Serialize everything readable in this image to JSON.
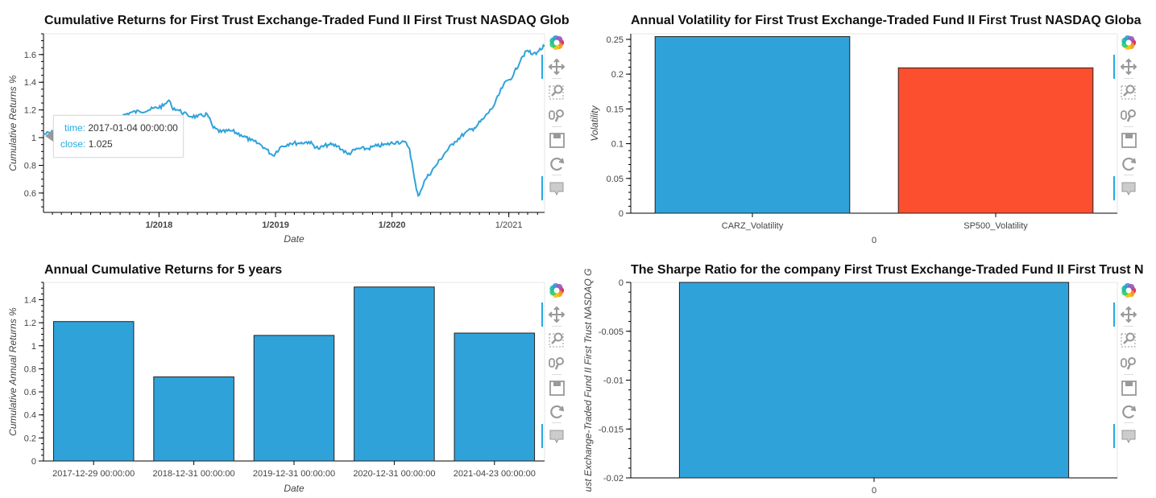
{
  "colors": {
    "blue": "#30a2da",
    "red": "#fc4f30",
    "accent": "#26aae1"
  },
  "toolbar_tools": [
    "bokeh-logo-icon",
    "pan-icon",
    "box-zoom-icon",
    "wheel-zoom-icon",
    "save-icon",
    "reset-icon",
    "hover-icon"
  ],
  "charts": {
    "cum": {
      "title": "Cumulative Returns for First Trust Exchange-Traded Fund II First Trust NASDAQ Glob",
      "xlabel": "Date",
      "ylabel": "Cumulative Returns %",
      "yticks": [
        "0.6",
        "0.8",
        "1",
        "1.2",
        "1.4",
        "1.6"
      ],
      "xticks": [
        "1/2018",
        "1/2019",
        "1/2020",
        "1/2021"
      ],
      "tooltip": {
        "time_label": "time:",
        "time_value": "2017-01-04 00:00:00",
        "close_label": "close:",
        "close_value": "1.025"
      }
    },
    "vol": {
      "title": "Annual Volatility for First Trust Exchange-Traded Fund II First Trust NASDAQ Globa",
      "xlabel": "0",
      "ylabel": "Volatility",
      "yticks": [
        "0",
        "0.05",
        "0.1",
        "0.15",
        "0.2",
        "0.25"
      ]
    },
    "ann": {
      "title": "Annual Cumulative Returns for 5 years",
      "xlabel": "Date",
      "ylabel": "Cumulative Annual Returns %",
      "yticks": [
        "0",
        "0.2",
        "0.4",
        "0.6",
        "0.8",
        "1",
        "1.2",
        "1.4"
      ]
    },
    "sharpe": {
      "title": "The Sharpe Ratio for the company First Trust Exchange-Traded Fund II First Trust N",
      "xlabel": "",
      "ylabel": "ust Exchange-Traded Fund II First Trust NASDAQ G",
      "yticks": [
        "0",
        "-0.005",
        "-0.01",
        "-0.015",
        "-0.02"
      ]
    }
  },
  "chart_data": [
    {
      "type": "line",
      "title": "Cumulative Returns for First Trust Exchange-Traded Fund II First Trust NASDAQ Glob",
      "xlabel": "Date",
      "ylabel": "Cumulative Returns %",
      "xlim": [
        "2017-01-04",
        "2021-04-23"
      ],
      "ylim": [
        0.46,
        1.75
      ],
      "grid": false,
      "series": [
        {
          "x": [
            "2017-01-04",
            "2017-03-01",
            "2017-05-01",
            "2017-07-01",
            "2017-09-01",
            "2017-10-01",
            "2017-11-01",
            "2017-12-01",
            "2018-01-15",
            "2018-02-01",
            "2018-02-10",
            "2018-03-01",
            "2018-04-01",
            "2018-05-01",
            "2018-06-01",
            "2018-06-20",
            "2018-07-15",
            "2018-08-15",
            "2018-09-15",
            "2018-10-15",
            "2018-11-15",
            "2018-12-01",
            "2018-12-24",
            "2019-01-15",
            "2019-02-15",
            "2019-03-15",
            "2019-04-15",
            "2019-05-15",
            "2019-06-15",
            "2019-07-15",
            "2019-08-15",
            "2019-09-15",
            "2019-10-15",
            "2019-11-15",
            "2019-12-15",
            "2020-01-15",
            "2020-02-15",
            "2020-02-25",
            "2020-03-10",
            "2020-03-18",
            "2020-03-23",
            "2020-04-15",
            "2020-05-15",
            "2020-06-15",
            "2020-07-15",
            "2020-08-15",
            "2020-09-15",
            "2020-10-15",
            "2020-11-15",
            "2020-12-15",
            "2021-01-15",
            "2021-02-10",
            "2021-03-01",
            "2021-03-15",
            "2021-04-01",
            "2021-04-23"
          ],
          "y": [
            1.025,
            1.05,
            1.08,
            1.12,
            1.15,
            1.18,
            1.19,
            1.2,
            1.23,
            1.27,
            1.22,
            1.2,
            1.16,
            1.15,
            1.17,
            1.07,
            1.04,
            1.05,
            1.02,
            0.98,
            0.95,
            0.92,
            0.87,
            0.93,
            0.96,
            0.96,
            0.97,
            0.92,
            0.95,
            0.94,
            0.88,
            0.92,
            0.92,
            0.94,
            0.95,
            0.97,
            0.96,
            0.92,
            0.72,
            0.62,
            0.58,
            0.7,
            0.79,
            0.89,
            0.97,
            1.03,
            1.07,
            1.14,
            1.23,
            1.38,
            1.45,
            1.58,
            1.63,
            1.6,
            1.62,
            1.66
          ]
        }
      ],
      "tooltip": {
        "time": "2017-01-04 00:00:00",
        "close": 1.025
      }
    },
    {
      "type": "bar",
      "title": "Annual Volatility for First Trust Exchange-Traded Fund II First Trust NASDAQ Globa",
      "xlabel": "0",
      "ylabel": "Volatility",
      "categories": [
        "CARZ_Volatility",
        "SP500_Volatility"
      ],
      "values": [
        0.254,
        0.209
      ],
      "colors": [
        "#30a2da",
        "#fc4f30"
      ],
      "ylim": [
        0,
        0.258
      ]
    },
    {
      "type": "bar",
      "title": "Annual Cumulative Returns for 5 years",
      "xlabel": "Date",
      "ylabel": "Cumulative Annual Returns %",
      "categories": [
        "2017-12-29 00:00:00",
        "2018-12-31 00:00:00",
        "2019-12-31 00:00:00",
        "2020-12-31 00:00:00",
        "2021-04-23 00:00:00"
      ],
      "values": [
        1.21,
        0.73,
        1.09,
        1.51,
        1.11
      ],
      "ylim": [
        0,
        1.55
      ]
    },
    {
      "type": "bar",
      "title": "The Sharpe Ratio for the company First Trust Exchange-Traded Fund II First Trust N",
      "xlabel": "",
      "ylabel": "ust Exchange-Traded Fund II First Trust NASDAQ G",
      "categories": [
        "0"
      ],
      "values": [
        -0.02
      ],
      "ylim": [
        -0.02,
        0
      ]
    }
  ]
}
